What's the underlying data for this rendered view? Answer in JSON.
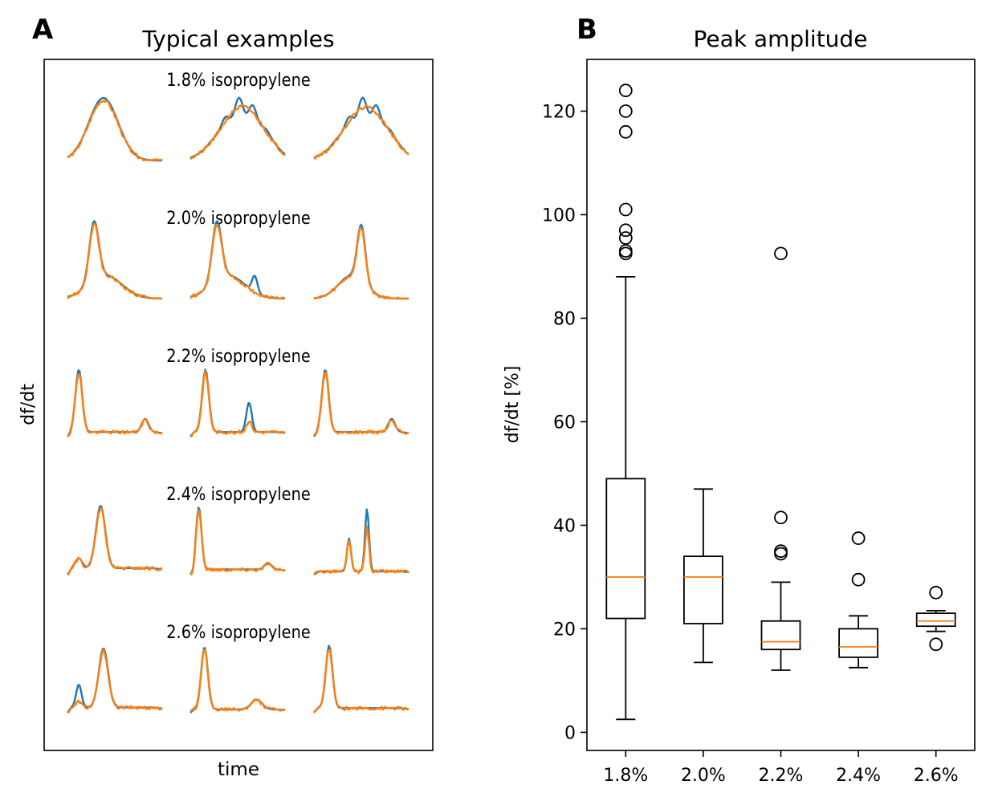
{
  "chart_data": [
    {
      "panel_letter": "A",
      "type": "line",
      "title": "Typical examples",
      "xlabel": "time",
      "ylabel": "df/dt",
      "grid": false,
      "legend": "none",
      "series_colors": [
        "#1f77b4",
        "#ff7f0e"
      ],
      "groups": [
        {
          "label": "1.8% isopropylene"
        },
        {
          "label": "2.0% isopropylene"
        },
        {
          "label": "2.2% isopropylene"
        },
        {
          "label": "2.4% isopropylene"
        },
        {
          "label": "2.6% isopropylene"
        }
      ],
      "traces_per_group": 3
    },
    {
      "panel_letter": "B",
      "type": "box",
      "title": "Peak amplitude",
      "xlabel": "",
      "ylabel": "df/dt [%]",
      "ylim": [
        -3.5,
        130
      ],
      "yticks": [
        0,
        20,
        40,
        60,
        80,
        100,
        120
      ],
      "grid": false,
      "median_color": "#ff7f0e",
      "categories": [
        "1.8%",
        "2.0%",
        "2.2%",
        "2.4%",
        "2.6%"
      ],
      "boxes": [
        {
          "category": "1.8%",
          "whisker_low": 2.5,
          "q1": 22,
          "median": 30,
          "q3": 49,
          "whisker_high": 88,
          "outliers": [
            92.5,
            93,
            95.5,
            97,
            101,
            116,
            120,
            124
          ]
        },
        {
          "category": "2.0%",
          "whisker_low": 13.5,
          "q1": 21,
          "median": 30,
          "q3": 34,
          "whisker_high": 47,
          "outliers": []
        },
        {
          "category": "2.2%",
          "whisker_low": 12,
          "q1": 16,
          "median": 17.5,
          "q3": 21.5,
          "whisker_high": 29,
          "outliers": [
            34.5,
            35,
            41.5,
            92.5
          ]
        },
        {
          "category": "2.4%",
          "whisker_low": 12.5,
          "q1": 14.5,
          "median": 16.5,
          "q3": 20,
          "whisker_high": 22.5,
          "outliers": [
            29.5,
            37.5
          ]
        },
        {
          "category": "2.6%",
          "whisker_low": 19.5,
          "q1": 20.5,
          "median": 21.5,
          "q3": 23,
          "whisker_high": 23.5,
          "outliers": [
            17,
            27
          ]
        }
      ]
    }
  ]
}
